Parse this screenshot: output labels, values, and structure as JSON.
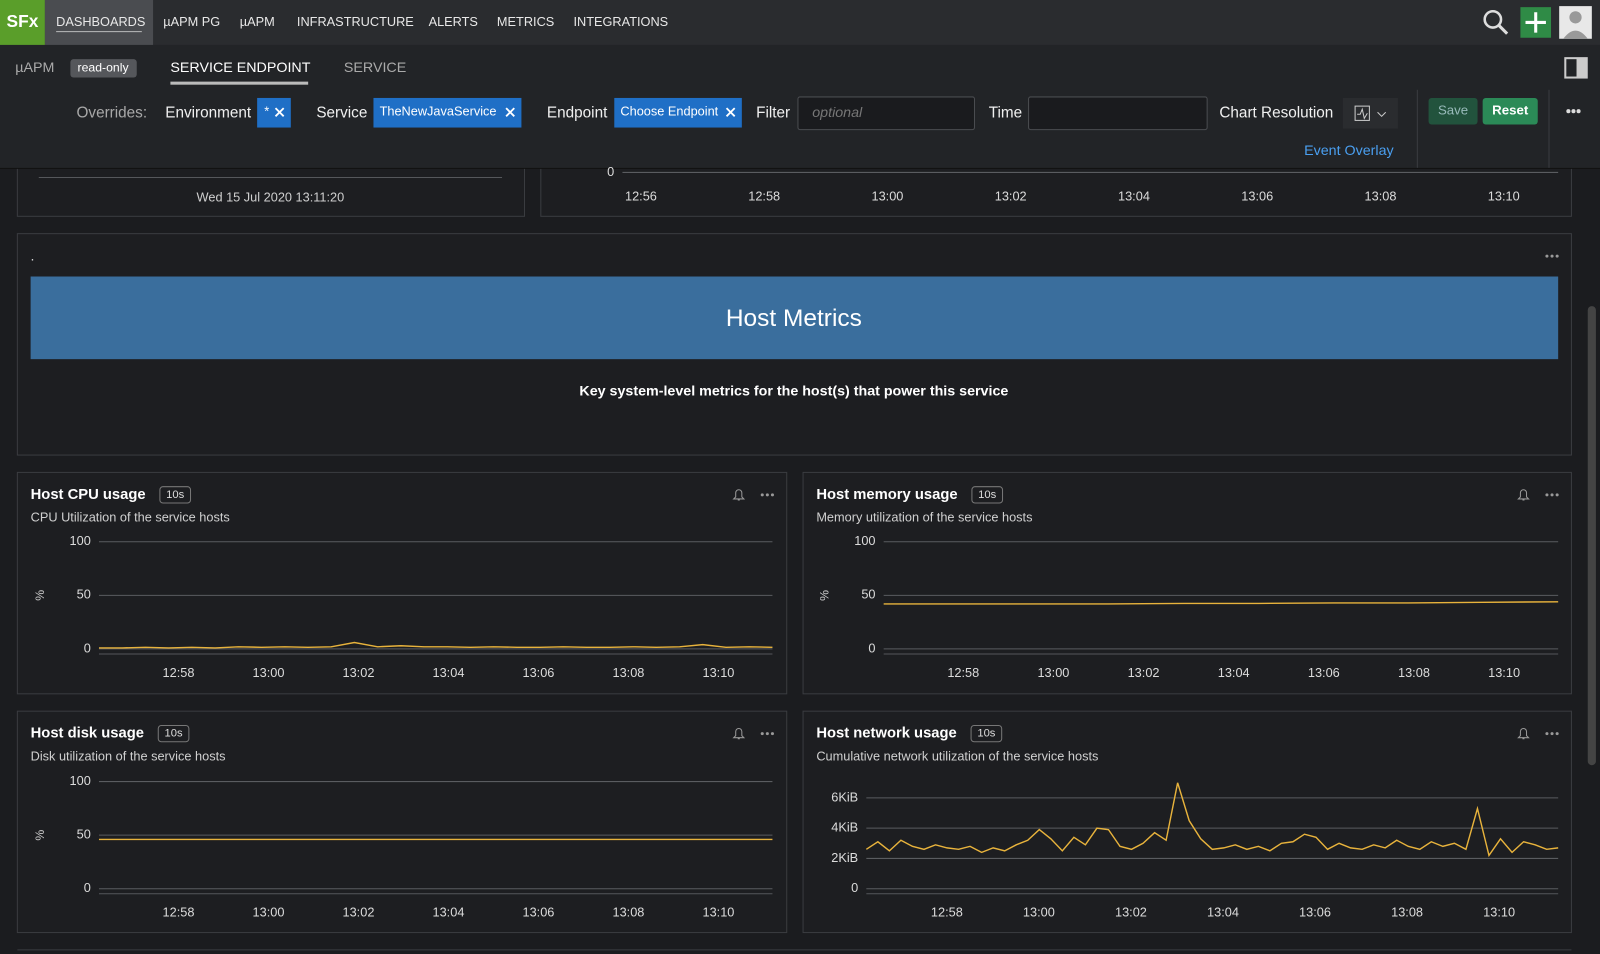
{
  "nav": {
    "logo": "SFx",
    "items": [
      "DASHBOARDS",
      "µAPM PG",
      "µAPM",
      "INFRASTRUCTURE",
      "ALERTS",
      "METRICS",
      "INTEGRATIONS"
    ]
  },
  "subnav": {
    "section": "µAPM",
    "badge": "read-only",
    "tabs": [
      "SERVICE ENDPOINT",
      "SERVICE"
    ]
  },
  "overrides": {
    "label": "Overrides:",
    "environment": {
      "label": "Environment",
      "value": "*"
    },
    "service": {
      "label": "Service",
      "value": "TheNewJavaService"
    },
    "endpoint": {
      "label": "Endpoint",
      "value": "Choose Endpoint"
    },
    "filter": {
      "label": "Filter",
      "placeholder": "optional"
    },
    "time": {
      "label": "Time"
    },
    "chart_resolution": "Chart Resolution",
    "save": "Save",
    "reset": "Reset",
    "event_overlay": "Event Overlay"
  },
  "top_panel": {
    "timestamp": "Wed 15 Jul 2020 13:11:20"
  },
  "text_panel": {
    "marker": ".",
    "title": "Host Metrics",
    "description": "Key system-level metrics for the host(s) that power this service"
  },
  "chart_data": [
    {
      "type": "line",
      "xlim": [
        "12:55:42",
        "13:10:53"
      ],
      "xticks": [
        "12:56",
        "12:58",
        "13:00",
        "13:02",
        "13:04",
        "13:06",
        "13:08",
        "13:10"
      ],
      "yticks": [
        0
      ]
    },
    {
      "type": "line",
      "title": "Host CPU usage",
      "badge": "10s",
      "subtitle": "CPU Utilization of the service hosts",
      "y_label": "%",
      "color": "#e8b33c",
      "xlim": [
        "12:56:14",
        "13:11:12"
      ],
      "xticks": [
        "12:58",
        "13:00",
        "13:02",
        "13:04",
        "13:06",
        "13:08",
        "13:10"
      ],
      "ylim": [
        0,
        100
      ],
      "yticks": [
        0,
        50,
        100
      ],
      "values": [
        1,
        1,
        1.5,
        1,
        1.5,
        1,
        2,
        1.5,
        2,
        1.5,
        2,
        6,
        2,
        3,
        2,
        2,
        1.5,
        2,
        1.5,
        1.5,
        2,
        1.5,
        1.5,
        2,
        1.5,
        2,
        4,
        1.5,
        2,
        1.5
      ]
    },
    {
      "type": "line",
      "title": "Host memory usage",
      "badge": "10s",
      "subtitle": "Memory utilization of the service hosts",
      "y_label": "%",
      "color": "#e8b33c",
      "xlim": [
        "12:56:14",
        "13:11:12"
      ],
      "xticks": [
        "12:58",
        "13:00",
        "13:02",
        "13:04",
        "13:06",
        "13:08",
        "13:10"
      ],
      "ylim": [
        0,
        100
      ],
      "yticks": [
        0,
        50,
        100
      ],
      "values": [
        42,
        42,
        42,
        42,
        42.5,
        42.5,
        43,
        43,
        43.5,
        44
      ]
    },
    {
      "type": "line",
      "title": "Host disk usage",
      "badge": "10s",
      "subtitle": "Disk utilization of the service hosts",
      "y_label": "%",
      "color": "#e8b33c",
      "xlim": [
        "12:56:14",
        "13:11:12"
      ],
      "xticks": [
        "12:58",
        "13:00",
        "13:02",
        "13:04",
        "13:06",
        "13:08",
        "13:10"
      ],
      "ylim": [
        0,
        100
      ],
      "yticks": [
        0,
        50,
        100
      ],
      "values": [
        46,
        46,
        46,
        46,
        46
      ]
    },
    {
      "type": "line",
      "title": "Host network usage",
      "badge": "10s",
      "subtitle": "Cumulative network utilization of the service hosts",
      "color": "#e8b33c",
      "xlim": [
        "12:56:15",
        "13:11:17"
      ],
      "xticks": [
        "12:58",
        "13:00",
        "13:02",
        "13:04",
        "13:06",
        "13:08",
        "13:10"
      ],
      "ylim": [
        0,
        7.2
      ],
      "yticks": [
        0,
        {
          "value": 2,
          "label": "2KiB"
        },
        {
          "value": 4,
          "label": "4KiB"
        },
        {
          "value": 6,
          "label": "6KiB"
        }
      ],
      "values": [
        2.6,
        3.1,
        2.5,
        3.2,
        2.8,
        2.6,
        2.9,
        2.7,
        2.6,
        2.8,
        2.4,
        2.7,
        2.5,
        2.9,
        3.2,
        3.9,
        3.3,
        2.5,
        3.4,
        2.9,
        4.0,
        3.9,
        2.8,
        2.6,
        3.0,
        3.7,
        3.2,
        7.0,
        4.5,
        3.3,
        2.6,
        2.7,
        2.9,
        2.6,
        2.8,
        2.5,
        3.0,
        3.1,
        3.6,
        3.4,
        2.6,
        3.0,
        2.7,
        2.6,
        2.9,
        2.7,
        3.2,
        2.8,
        2.6,
        3.1,
        2.8,
        3.0,
        2.6,
        5.3,
        2.2,
        3.3,
        2.4,
        3.1,
        2.9,
        2.6,
        2.7
      ]
    }
  ]
}
